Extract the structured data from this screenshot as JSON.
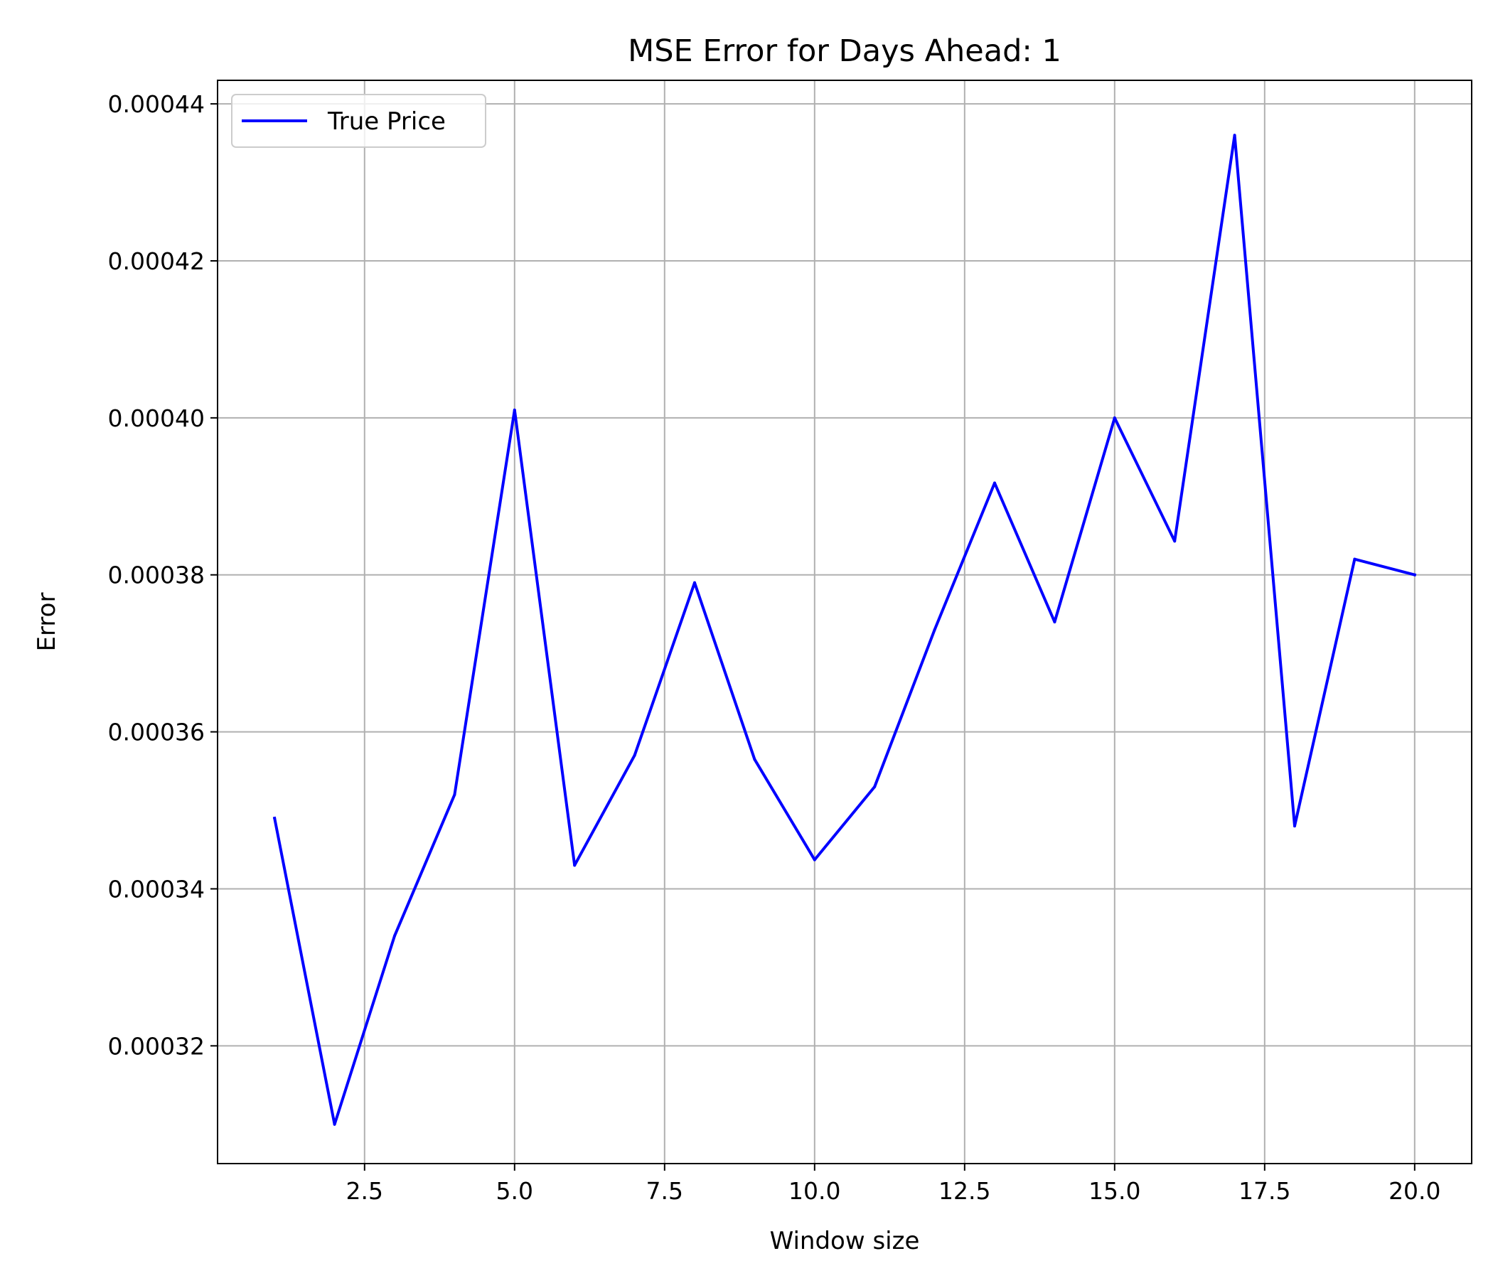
{
  "chart_data": {
    "type": "line",
    "title": "MSE Error for Days Ahead: 1",
    "xlabel": "Window size",
    "ylabel": "Error",
    "xlim": [
      0.05,
      20.95
    ],
    "ylim": [
      0.000305,
      0.000443
    ],
    "x_ticks": [
      2.5,
      5.0,
      7.5,
      10.0,
      12.5,
      15.0,
      17.5,
      20.0
    ],
    "x_tick_labels": [
      "2.5",
      "5.0",
      "7.5",
      "10.0",
      "12.5",
      "15.0",
      "17.5",
      "20.0"
    ],
    "y_ticks": [
      0.00032,
      0.00034,
      0.00036,
      0.00038,
      0.0004,
      0.00042,
      0.00044
    ],
    "y_tick_labels": [
      "0.00032",
      "0.00034",
      "0.00036",
      "0.00038",
      "0.00040",
      "0.00042",
      "0.00044"
    ],
    "grid": true,
    "legend_position": "upper left",
    "series": [
      {
        "name": "True Price",
        "color": "#0000ff",
        "x": [
          1,
          2,
          3,
          4,
          5,
          6,
          7,
          8,
          9,
          10,
          11,
          12,
          13,
          14,
          15,
          16,
          17,
          18,
          19,
          20
        ],
        "y": [
          0.000349,
          0.00031,
          0.000334,
          0.000352,
          0.000401,
          0.000343,
          0.000357,
          0.000379,
          0.0003565,
          0.0003437,
          0.000353,
          0.000373,
          0.0003917,
          0.000374,
          0.0004,
          0.0003843,
          0.000436,
          0.000348,
          0.000382,
          0.00038
        ]
      }
    ]
  }
}
